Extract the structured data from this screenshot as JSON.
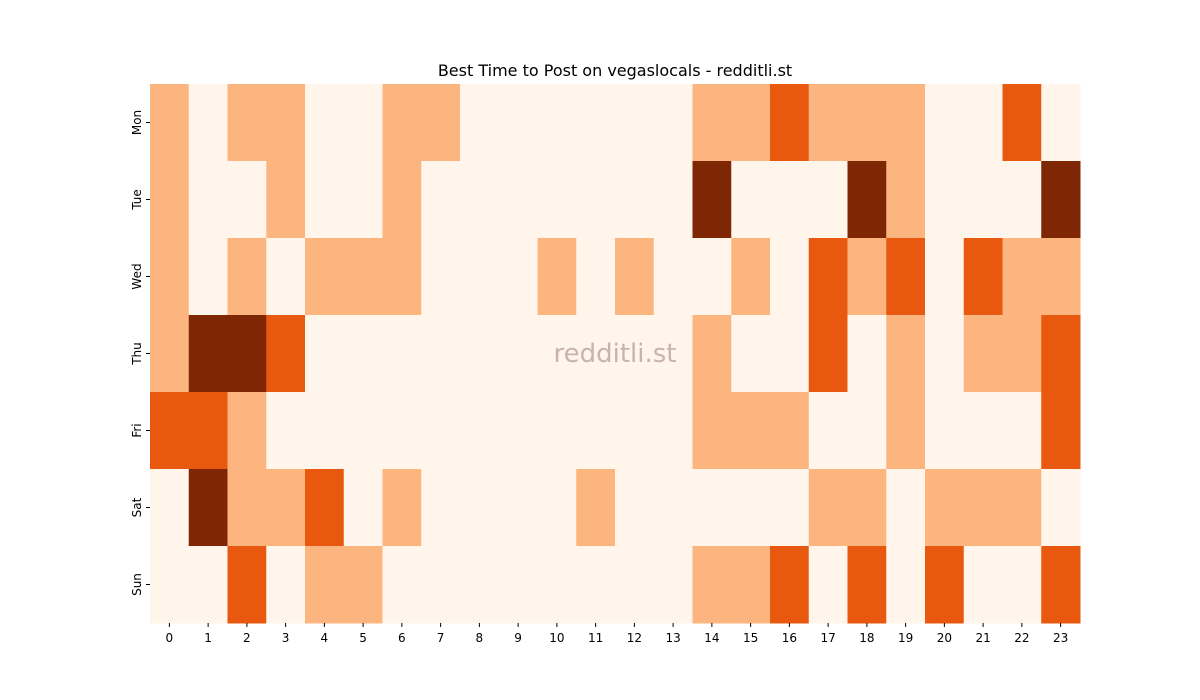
{
  "chart_data": {
    "type": "heatmap",
    "title": "Best Time to Post on vegaslocals - redditli.st",
    "watermark": "redditli.st",
    "xlabel": "",
    "ylabel": "",
    "x": [
      0,
      1,
      2,
      3,
      4,
      5,
      6,
      7,
      8,
      9,
      10,
      11,
      12,
      13,
      14,
      15,
      16,
      17,
      18,
      19,
      20,
      21,
      22,
      23
    ],
    "y": [
      "Mon",
      "Tue",
      "Wed",
      "Thu",
      "Fri",
      "Sat",
      "Sun"
    ],
    "colormap": [
      "#fff5eb",
      "#fdb57f",
      "#e8590f",
      "#7f2704"
    ],
    "levels": [
      [
        1,
        0,
        1,
        1,
        0,
        0,
        1,
        1,
        0,
        0,
        0,
        0,
        0,
        0,
        1,
        1,
        2,
        1,
        1,
        1,
        0,
        0,
        2,
        0
      ],
      [
        1,
        0,
        0,
        1,
        0,
        0,
        1,
        0,
        0,
        0,
        0,
        0,
        0,
        0,
        3,
        0,
        0,
        0,
        3,
        1,
        0,
        0,
        0,
        3
      ],
      [
        1,
        0,
        1,
        0,
        1,
        1,
        1,
        0,
        0,
        0,
        1,
        0,
        1,
        0,
        0,
        1,
        0,
        2,
        1,
        2,
        0,
        2,
        1,
        1
      ],
      [
        1,
        3,
        3,
        2,
        0,
        0,
        0,
        0,
        0,
        0,
        0,
        0,
        0,
        0,
        1,
        0,
        0,
        2,
        0,
        1,
        0,
        1,
        1,
        2
      ],
      [
        2,
        2,
        1,
        0,
        0,
        0,
        0,
        0,
        0,
        0,
        0,
        0,
        0,
        0,
        1,
        1,
        1,
        0,
        0,
        1,
        0,
        0,
        0,
        2
      ],
      [
        0,
        3,
        1,
        1,
        2,
        0,
        1,
        0,
        0,
        0,
        0,
        1,
        0,
        0,
        0,
        0,
        0,
        1,
        1,
        0,
        1,
        1,
        1,
        0
      ],
      [
        0,
        0,
        2,
        0,
        1,
        1,
        0,
        0,
        0,
        0,
        0,
        0,
        0,
        0,
        1,
        1,
        2,
        0,
        2,
        0,
        2,
        0,
        0,
        2
      ]
    ]
  }
}
